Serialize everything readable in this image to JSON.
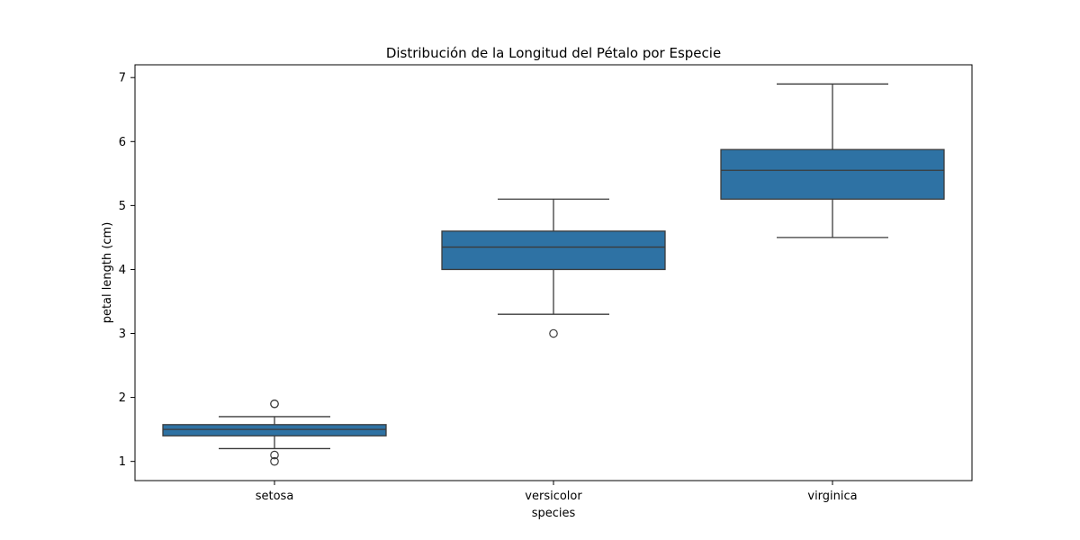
{
  "chart_data": {
    "type": "box",
    "title": "Distribución de la Longitud del Pétalo por Especie",
    "xlabel": "species",
    "ylabel": "petal length (cm)",
    "categories": [
      "setosa",
      "versicolor",
      "virginica"
    ],
    "ylim": [
      0.7,
      7.2
    ],
    "yticks": [
      "1",
      "2",
      "3",
      "4",
      "5",
      "6",
      "7"
    ],
    "grid": false,
    "box_color": "#2e72a4",
    "line_color": "#3b3b3b",
    "series": [
      {
        "category": "setosa",
        "whisker_low": 1.2,
        "q1": 1.4,
        "median": 1.5,
        "q3": 1.575,
        "whisker_high": 1.7,
        "outliers": [
          1.0,
          1.1,
          1.9,
          1.9
        ]
      },
      {
        "category": "versicolor",
        "whisker_low": 3.3,
        "q1": 4.0,
        "median": 4.35,
        "q3": 4.6,
        "whisker_high": 5.1,
        "outliers": [
          3.0
        ]
      },
      {
        "category": "virginica",
        "whisker_low": 4.5,
        "q1": 5.1,
        "median": 5.55,
        "q3": 5.875,
        "whisker_high": 6.9,
        "outliers": []
      }
    ]
  }
}
